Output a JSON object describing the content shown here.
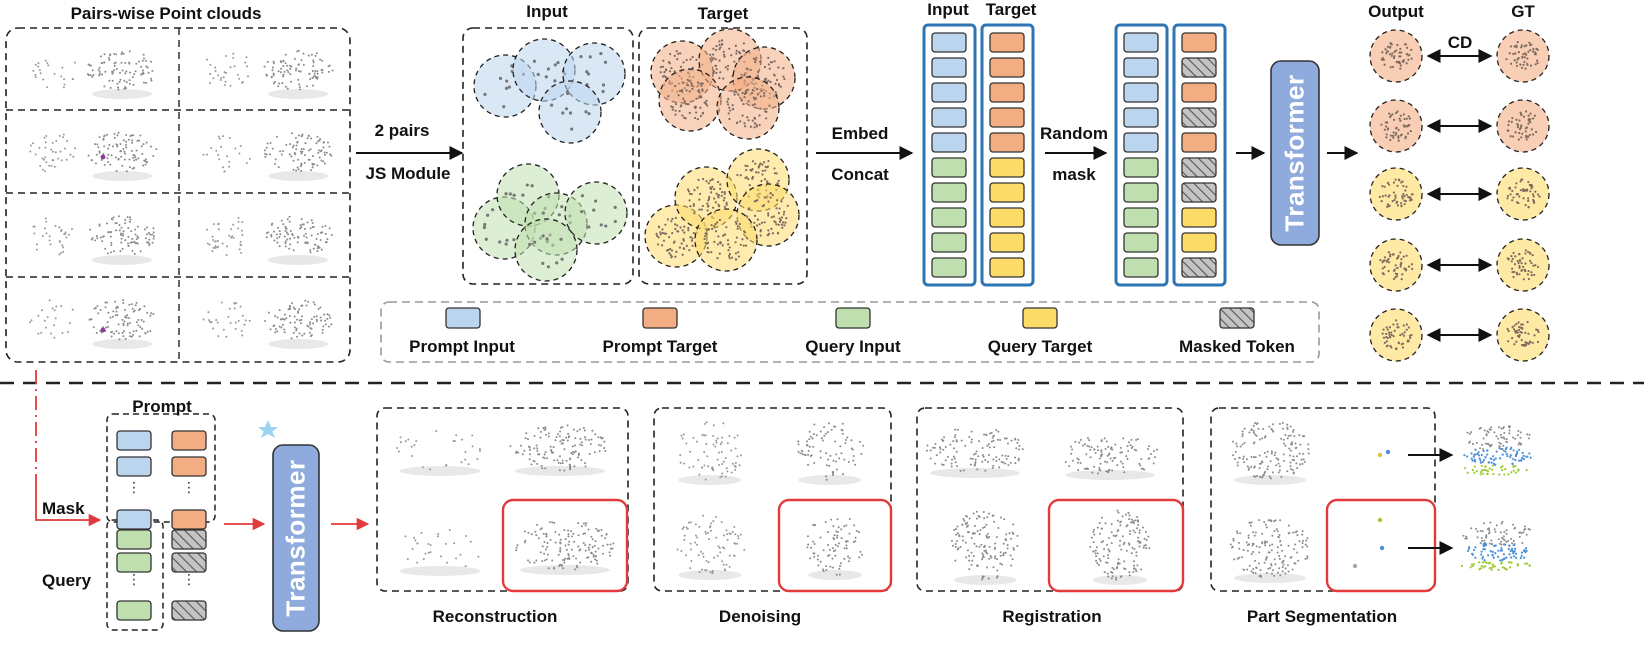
{
  "colors": {
    "prompt_input": "#bcd5ef",
    "prompt_target": "#f3ad83",
    "query_input": "#bfe0ae",
    "query_target": "#fddb69",
    "masked": "#bfbfbf",
    "transformer": "#8faadc",
    "column_border": "#2e75b6",
    "highlight": "#e33b3b"
  },
  "top": {
    "pairs_title": "Pairs-wise Point clouds",
    "step1_line1": "2 pairs",
    "step1_line2": "JS Module",
    "input_label": "Input",
    "target_label": "Target",
    "step2_line1": "Embed",
    "step2_line2": "Concat",
    "col_input_label": "Input",
    "col_target_label": "Target",
    "step3_line1": "Random",
    "step3_line2": "mask",
    "transformer": "Transformer",
    "output_label": "Output",
    "gt_label": "GT",
    "cd_label": "CD"
  },
  "legend": [
    {
      "label": "Prompt Input",
      "kind": "prompt_input"
    },
    {
      "label": "Prompt Target",
      "kind": "prompt_target"
    },
    {
      "label": "Query Input",
      "kind": "query_input"
    },
    {
      "label": "Query Target",
      "kind": "query_target"
    },
    {
      "label": "Masked Token",
      "kind": "masked"
    }
  ],
  "bottom": {
    "prompt_label": "Prompt",
    "mask_label": "Mask",
    "query_label": "Query",
    "ellipsis": "⋮",
    "transformer": "Transformer",
    "tasks": [
      {
        "label": "Reconstruction"
      },
      {
        "label": "Denoising"
      },
      {
        "label": "Registration"
      },
      {
        "label": "Part Segmentation"
      }
    ]
  }
}
